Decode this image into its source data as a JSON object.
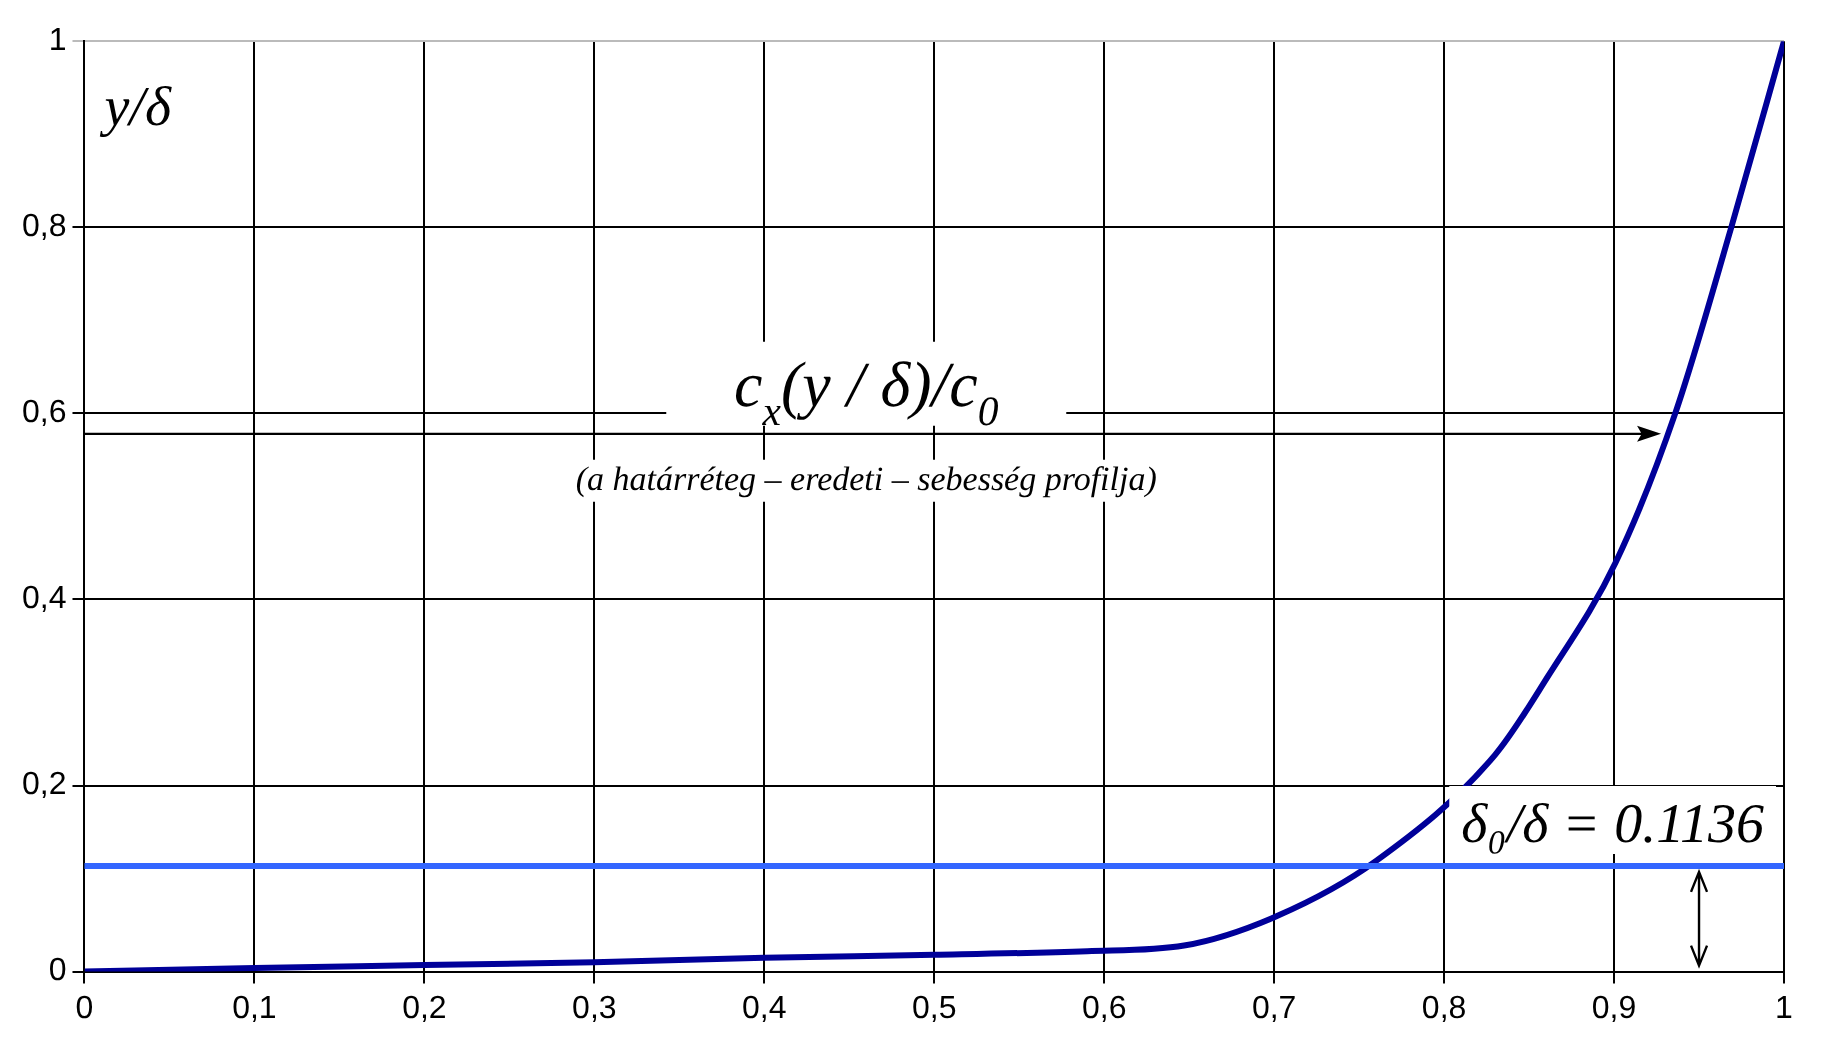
{
  "chart_data": {
    "type": "line",
    "ylabel": "y/δ",
    "x": [
      0,
      0.1,
      0.2,
      0.3,
      0.4,
      0.5,
      0.59,
      0.647,
      0.702,
      0.76,
      0.83,
      0.861,
      0.901,
      0.936,
      0.969,
      1
    ],
    "series": [
      {
        "color": "#000099",
        "values": [
          0,
          0.004,
          0.007,
          0.01,
          0.015,
          0.018,
          0.022,
          0.028,
          0.06,
          0.119,
          0.233,
          0.317,
          0.44,
          0.6,
          0.8,
          1
        ]
      }
    ],
    "xlim": [
      0,
      1
    ],
    "ylim": [
      0,
      1
    ],
    "xticks": [
      0,
      {
        "value": 0.1,
        "label": "0,1"
      },
      {
        "value": 0.2,
        "label": "0,2"
      },
      {
        "value": 0.3,
        "label": "0,3"
      },
      {
        "value": 0.4,
        "label": "0,4"
      },
      {
        "value": 0.5,
        "label": "0,5"
      },
      {
        "value": 0.6,
        "label": "0,6"
      },
      {
        "value": 0.7,
        "label": "0,7"
      },
      {
        "value": 0.8,
        "label": "0,8"
      },
      {
        "value": 0.9,
        "label": "0,9"
      },
      1
    ],
    "yticks": [
      0,
      {
        "value": 0.2,
        "label": "0,2"
      },
      {
        "value": 0.4,
        "label": "0,4"
      },
      {
        "value": 0.6,
        "label": "0,6"
      },
      {
        "value": 0.8,
        "label": "0,8"
      },
      1
    ],
    "ref_lines": [
      {
        "axis": "y",
        "value": 0.1136,
        "label": "δ₀/δ = 0.1136",
        "color": "#3366ff"
      }
    ],
    "annotations": [
      "c$_{x}$(y / δ)/c$_{0}$",
      "(a határréteg – eredeti – sebesség profilja)"
    ],
    "grid": true,
    "legend": false,
    "marker": "none",
    "line_style": "solid"
  }
}
